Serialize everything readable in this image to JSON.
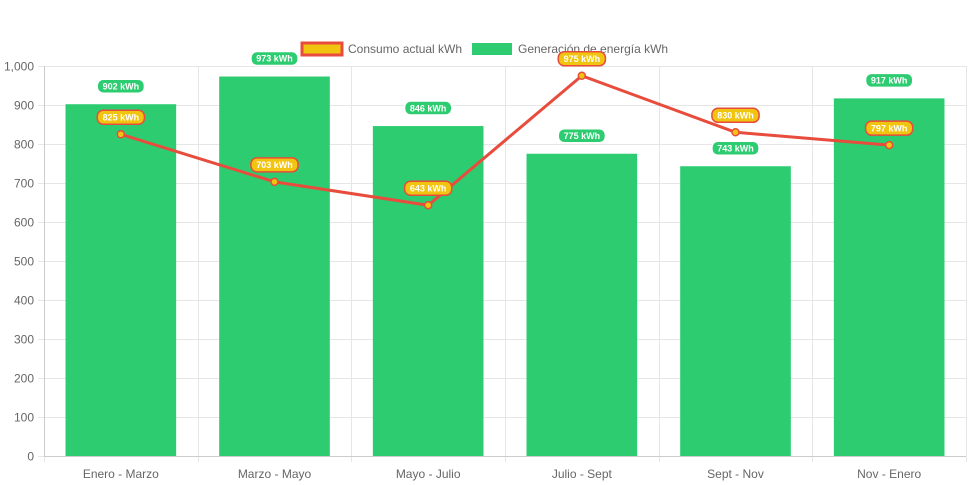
{
  "chart_data": {
    "type": "bar",
    "categories": [
      "Enero - Marzo",
      "Marzo - Mayo",
      "Mayo - Julio",
      "Julio - Sept",
      "Sept - Nov",
      "Nov - Enero"
    ],
    "series": [
      {
        "name": "Consumo actual kWh",
        "type": "line",
        "values": [
          825,
          703,
          643,
          975,
          830,
          797
        ],
        "color": "#e74c3c",
        "fill_color": "#f1c40f"
      },
      {
        "name": "Generación de energía kWh",
        "type": "bar",
        "values": [
          902,
          973,
          846,
          775,
          743,
          917
        ],
        "color": "#2ecc71"
      }
    ],
    "data_label_suffix": " kWh",
    "ylim": [
      0,
      1000
    ],
    "yticks": [
      "0",
      "100",
      "200",
      "300",
      "400",
      "500",
      "600",
      "700",
      "800",
      "900",
      "1,000"
    ],
    "grid": true,
    "legend_position": "top-center"
  }
}
